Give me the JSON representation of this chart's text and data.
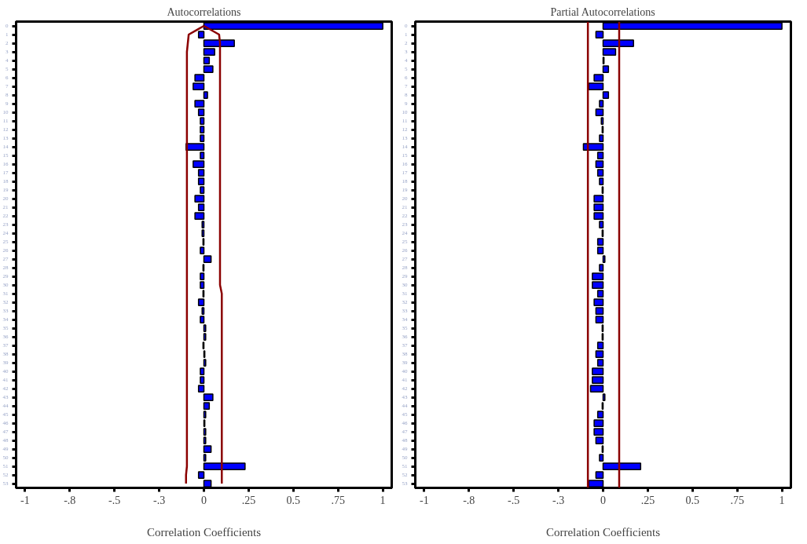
{
  "chart_data": [
    {
      "type": "bar",
      "orientation": "horizontal",
      "title": "Autocorrelations",
      "xlabel": "Correlation Coefficients",
      "grid": false,
      "categories": [
        "0",
        "1",
        "2",
        "3",
        "4",
        "5",
        "6",
        "7",
        "8",
        "9",
        "10",
        "11",
        "12",
        "13",
        "14",
        "15",
        "16",
        "17",
        "18",
        "19",
        "20",
        "21",
        "22",
        "23",
        "24",
        "25",
        "26",
        "27",
        "28",
        "29",
        "30",
        "31",
        "32",
        "33",
        "34",
        "35",
        "36",
        "37",
        "38",
        "39",
        "40",
        "41",
        "42",
        "43",
        "44",
        "45",
        "46",
        "47",
        "48",
        "49",
        "50",
        "51",
        "52",
        "53"
      ],
      "xlim": [
        -1.05,
        1.05
      ],
      "xticks": [
        -1,
        {
          "value": -0.75,
          "label": "-.8"
        },
        {
          "value": -0.5,
          "label": "-.5"
        },
        {
          "value": -0.25,
          "label": "-.3"
        },
        0,
        {
          "value": 0.25,
          "label": ".25"
        },
        0.5,
        {
          "value": 0.75,
          "label": ".75"
        },
        1
      ],
      "series": [
        {
          "color": "#0000ff",
          "values": [
            1.0,
            -0.03,
            0.17,
            0.06,
            0.03,
            0.05,
            -0.05,
            -0.06,
            0.02,
            -0.05,
            -0.03,
            -0.02,
            -0.02,
            -0.02,
            -0.1,
            -0.02,
            -0.06,
            -0.03,
            -0.03,
            -0.02,
            -0.05,
            -0.03,
            -0.05,
            -0.01,
            -0.01,
            -0.005,
            -0.02,
            0.04,
            -0.005,
            -0.02,
            -0.02,
            -0.005,
            -0.03,
            -0.01,
            -0.02,
            0.01,
            0.01,
            -0.005,
            0.005,
            0.01,
            -0.02,
            -0.02,
            -0.03,
            0.05,
            0.03,
            0.01,
            0.005,
            0.01,
            0.01,
            0.04,
            0.01,
            0.23,
            -0.03,
            0.04
          ]
        },
        {
          "type": "line",
          "color": "#8b0000",
          "values": [
            0.0,
            0.085,
            0.09,
            0.09,
            0.09,
            0.09,
            0.09,
            0.09,
            0.09,
            0.09,
            0.09,
            0.09,
            0.09,
            0.09,
            0.09,
            0.09,
            0.09,
            0.09,
            0.09,
            0.09,
            0.09,
            0.09,
            0.09,
            0.09,
            0.09,
            0.09,
            0.09,
            0.09,
            0.09,
            0.09,
            0.09,
            0.1,
            0.1,
            0.1,
            0.1,
            0.1,
            0.1,
            0.1,
            0.1,
            0.1,
            0.1,
            0.1,
            0.1,
            0.1,
            0.1,
            0.1,
            0.1,
            0.1,
            0.1,
            0.1,
            0.1,
            0.1,
            0.1,
            0.1
          ]
        },
        {
          "type": "line",
          "color": "#8b0000",
          "values": [
            0.0,
            -0.085,
            -0.09,
            -0.095,
            -0.095,
            -0.095,
            -0.095,
            -0.095,
            -0.095,
            -0.095,
            -0.095,
            -0.095,
            -0.095,
            -0.095,
            -0.095,
            -0.095,
            -0.095,
            -0.095,
            -0.095,
            -0.095,
            -0.095,
            -0.095,
            -0.095,
            -0.095,
            -0.095,
            -0.095,
            -0.095,
            -0.095,
            -0.095,
            -0.095,
            -0.095,
            -0.095,
            -0.095,
            -0.095,
            -0.095,
            -0.095,
            -0.095,
            -0.095,
            -0.095,
            -0.095,
            -0.095,
            -0.095,
            -0.095,
            -0.095,
            -0.095,
            -0.095,
            -0.095,
            -0.095,
            -0.095,
            -0.095,
            -0.095,
            -0.095,
            -0.1,
            -0.1
          ]
        }
      ]
    },
    {
      "type": "bar",
      "orientation": "horizontal",
      "title": "Partial Autocorrelations",
      "xlabel": "Correlation Coefficients",
      "grid": false,
      "categories": [
        "0",
        "1",
        "2",
        "3",
        "4",
        "5",
        "6",
        "7",
        "8",
        "9",
        "10",
        "11",
        "12",
        "13",
        "14",
        "15",
        "16",
        "17",
        "18",
        "19",
        "20",
        "21",
        "22",
        "23",
        "24",
        "25",
        "26",
        "27",
        "28",
        "29",
        "30",
        "31",
        "32",
        "33",
        "34",
        "35",
        "36",
        "37",
        "38",
        "39",
        "40",
        "41",
        "42",
        "43",
        "44",
        "45",
        "46",
        "47",
        "48",
        "49",
        "50",
        "51",
        "52",
        "53"
      ],
      "xlim": [
        -1.05,
        1.05
      ],
      "xticks": [
        -1,
        {
          "value": -0.75,
          "label": "-.8"
        },
        {
          "value": -0.5,
          "label": "-.5"
        },
        {
          "value": -0.25,
          "label": "-.3"
        },
        0,
        {
          "value": 0.25,
          "label": ".25"
        },
        0.5,
        {
          "value": 0.75,
          "label": ".75"
        },
        1
      ],
      "ref_lines": [
        {
          "axis": "x",
          "value": -0.085,
          "label": null,
          "color": "#8b0000"
        },
        {
          "axis": "x",
          "value": 0.09,
          "label": null,
          "color": "#8b0000"
        }
      ],
      "series": [
        {
          "color": "#0000ff",
          "values": [
            1.0,
            -0.04,
            0.17,
            0.07,
            0.005,
            0.03,
            -0.05,
            -0.08,
            0.03,
            -0.02,
            -0.04,
            -0.01,
            -0.005,
            -0.02,
            -0.11,
            -0.03,
            -0.04,
            -0.03,
            -0.02,
            -0.005,
            -0.05,
            -0.05,
            -0.05,
            -0.02,
            -0.005,
            -0.03,
            -0.03,
            0.01,
            -0.02,
            -0.06,
            -0.06,
            -0.03,
            -0.05,
            -0.04,
            -0.04,
            -0.005,
            -0.005,
            -0.03,
            -0.04,
            -0.03,
            -0.06,
            -0.06,
            -0.07,
            0.01,
            -0.005,
            -0.03,
            -0.05,
            -0.05,
            -0.04,
            -0.005,
            -0.02,
            0.21,
            -0.04,
            -0.08
          ]
        }
      ]
    }
  ]
}
